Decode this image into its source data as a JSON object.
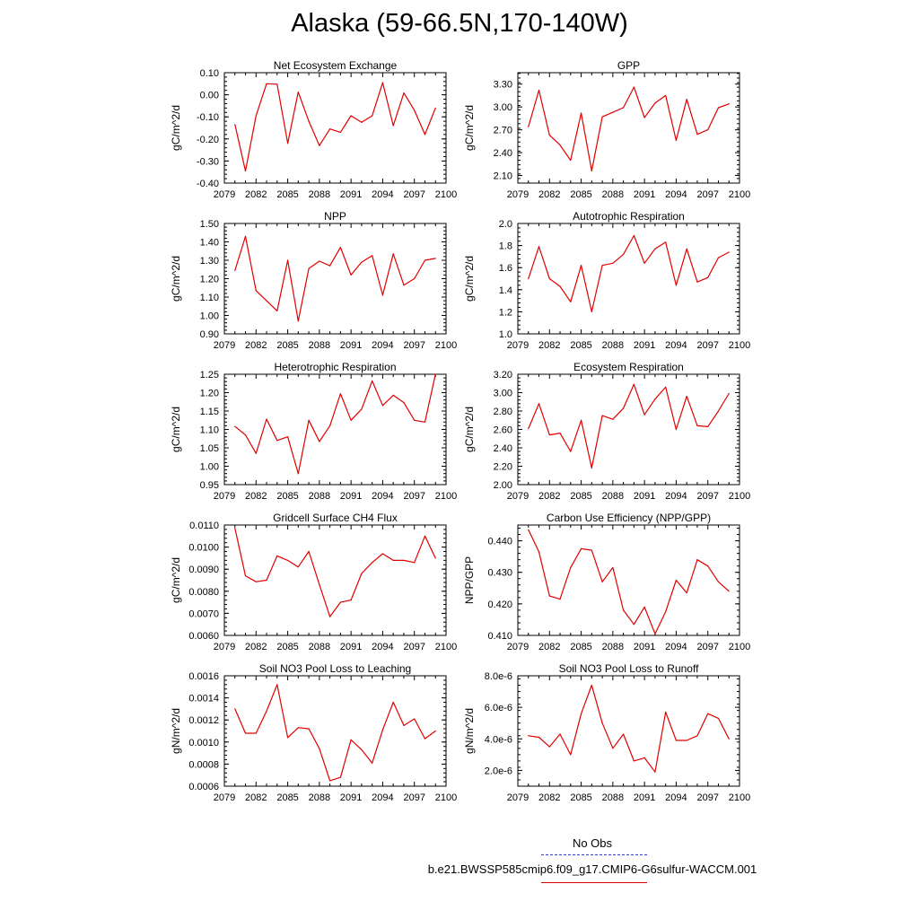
{
  "title": "Alaska (59-66.5N,170-140W)",
  "legend": {
    "obs_label": "No Obs",
    "obs_color": "#3b3bd9",
    "case_label": "b.e21.BWSSP585cmip6.f09_g17.CMIP6-G6sulfur-WACCM.001",
    "case_color": "#e00000"
  },
  "chart_data": [
    {
      "type": "line",
      "title": "Net Ecosystem Exchange",
      "ylabel": "gC/m^2/d",
      "xlim": [
        2079,
        2100
      ],
      "xticks": [
        "2079",
        "2082",
        "2085",
        "2088",
        "2091",
        "2094",
        "2097",
        "2100"
      ],
      "ylim": [
        -0.4,
        0.1
      ],
      "yticks": [
        "-0.40",
        "-0.30",
        "-0.20",
        "-0.10",
        "0.00",
        "0.10"
      ],
      "x": [
        2080,
        2081,
        2082,
        2083,
        2084,
        2085,
        2086,
        2087,
        2088,
        2089,
        2090,
        2091,
        2092,
        2093,
        2094,
        2095,
        2096,
        2097,
        2098,
        2099
      ],
      "values": [
        -0.135,
        -0.345,
        -0.095,
        0.05,
        0.048,
        -0.22,
        0.012,
        -0.12,
        -0.23,
        -0.155,
        -0.17,
        -0.095,
        -0.125,
        -0.095,
        0.055,
        -0.14,
        0.008,
        -0.07,
        -0.18,
        -0.06
      ]
    },
    {
      "type": "line",
      "title": "GPP",
      "ylabel": "gC/m^2/d",
      "xlim": [
        2079,
        2100
      ],
      "xticks": [
        "2079",
        "2082",
        "2085",
        "2088",
        "2091",
        "2094",
        "2097",
        "2100"
      ],
      "ylim": [
        2.0,
        3.45
      ],
      "yticks": [
        "2.10",
        "2.40",
        "2.70",
        "3.00",
        "3.30"
      ],
      "x": [
        2080,
        2081,
        2082,
        2083,
        2084,
        2085,
        2086,
        2087,
        2088,
        2089,
        2090,
        2091,
        2092,
        2093,
        2094,
        2095,
        2096,
        2097,
        2098,
        2099
      ],
      "values": [
        2.74,
        3.22,
        2.63,
        2.5,
        2.3,
        2.92,
        2.16,
        2.87,
        2.93,
        2.99,
        3.26,
        2.86,
        3.05,
        3.15,
        2.56,
        3.1,
        2.64,
        2.7,
        2.99,
        3.04
      ]
    },
    {
      "type": "line",
      "title": "NPP",
      "ylabel": "gC/m^2/d",
      "xlim": [
        2079,
        2100
      ],
      "xticks": [
        "2079",
        "2082",
        "2085",
        "2088",
        "2091",
        "2094",
        "2097",
        "2100"
      ],
      "ylim": [
        0.9,
        1.5
      ],
      "yticks": [
        "0.90",
        "1.00",
        "1.10",
        "1.20",
        "1.30",
        "1.40",
        "1.50"
      ],
      "x": [
        2080,
        2081,
        2082,
        2083,
        2084,
        2085,
        2086,
        2087,
        2088,
        2089,
        2090,
        2091,
        2092,
        2093,
        2094,
        2095,
        2096,
        2097,
        2098,
        2099
      ],
      "values": [
        1.245,
        1.43,
        1.135,
        1.08,
        1.025,
        1.3,
        0.97,
        1.255,
        1.295,
        1.27,
        1.37,
        1.22,
        1.29,
        1.325,
        1.11,
        1.335,
        1.165,
        1.2,
        1.3,
        1.31
      ]
    },
    {
      "type": "line",
      "title": "Autotrophic Respiration",
      "ylabel": "gC/m^2/d",
      "xlim": [
        2079,
        2100
      ],
      "xticks": [
        "2079",
        "2082",
        "2085",
        "2088",
        "2091",
        "2094",
        "2097",
        "2100"
      ],
      "ylim": [
        1.0,
        2.0
      ],
      "yticks": [
        "1.0",
        "1.2",
        "1.4",
        "1.6",
        "1.8",
        "2.0"
      ],
      "x": [
        2080,
        2081,
        2082,
        2083,
        2084,
        2085,
        2086,
        2087,
        2088,
        2089,
        2090,
        2091,
        2092,
        2093,
        2094,
        2095,
        2096,
        2097,
        2098,
        2099
      ],
      "values": [
        1.5,
        1.79,
        1.5,
        1.43,
        1.29,
        1.62,
        1.2,
        1.62,
        1.64,
        1.72,
        1.89,
        1.64,
        1.77,
        1.83,
        1.44,
        1.77,
        1.47,
        1.51,
        1.69,
        1.74
      ]
    },
    {
      "type": "line",
      "title": "Heterotrophic Respiration",
      "ylabel": "gC/m^2/d",
      "xlim": [
        2079,
        2100
      ],
      "xticks": [
        "2079",
        "2082",
        "2085",
        "2088",
        "2091",
        "2094",
        "2097",
        "2100"
      ],
      "ylim": [
        0.95,
        1.25
      ],
      "yticks": [
        "0.95",
        "1.00",
        "1.05",
        "1.10",
        "1.15",
        "1.20",
        "1.25"
      ],
      "x": [
        2080,
        2081,
        2082,
        2083,
        2084,
        2085,
        2086,
        2087,
        2088,
        2089,
        2090,
        2091,
        2092,
        2093,
        2094,
        2095,
        2096,
        2097,
        2098,
        2099
      ],
      "values": [
        1.108,
        1.085,
        1.035,
        1.128,
        1.07,
        1.08,
        0.98,
        1.125,
        1.067,
        1.11,
        1.197,
        1.125,
        1.155,
        1.232,
        1.165,
        1.193,
        1.173,
        1.125,
        1.12,
        1.25
      ]
    },
    {
      "type": "line",
      "title": "Ecosystem Respiration",
      "ylabel": "gC/m^2/d",
      "xlim": [
        2079,
        2100
      ],
      "xticks": [
        "2079",
        "2082",
        "2085",
        "2088",
        "2091",
        "2094",
        "2097",
        "2100"
      ],
      "ylim": [
        2.0,
        3.2
      ],
      "yticks": [
        "2.00",
        "2.20",
        "2.40",
        "2.60",
        "2.80",
        "3.00",
        "3.20"
      ],
      "x": [
        2080,
        2081,
        2082,
        2083,
        2084,
        2085,
        2086,
        2087,
        2088,
        2089,
        2090,
        2091,
        2092,
        2093,
        2094,
        2095,
        2096,
        2097,
        2098,
        2099
      ],
      "values": [
        2.61,
        2.88,
        2.54,
        2.56,
        2.36,
        2.7,
        2.18,
        2.75,
        2.71,
        2.83,
        3.09,
        2.76,
        2.93,
        3.06,
        2.6,
        2.96,
        2.64,
        2.63,
        2.8,
        2.99
      ]
    },
    {
      "type": "line",
      "title": "Gridcell Surface CH4 Flux",
      "ylabel": "gC/m^2/d",
      "xlim": [
        2079,
        2100
      ],
      "xticks": [
        "2079",
        "2082",
        "2085",
        "2088",
        "2091",
        "2094",
        "2097",
        "2100"
      ],
      "ylim": [
        0.006,
        0.011
      ],
      "yticks": [
        "0.0060",
        "0.0070",
        "0.0080",
        "0.0090",
        "0.0100",
        "0.0110"
      ],
      "x": [
        2080,
        2081,
        2082,
        2083,
        2084,
        2085,
        2086,
        2087,
        2088,
        2089,
        2090,
        2091,
        2092,
        2093,
        2094,
        2095,
        2096,
        2097,
        2098,
        2099
      ],
      "values": [
        0.01085,
        0.0087,
        0.00843,
        0.0085,
        0.0096,
        0.0094,
        0.0091,
        0.0098,
        0.0083,
        0.00685,
        0.0075,
        0.0076,
        0.0088,
        0.0093,
        0.0097,
        0.0094,
        0.0094,
        0.0093,
        0.0105,
        0.0095
      ]
    },
    {
      "type": "line",
      "title": "Carbon Use Efficiency (NPP/GPP)",
      "ylabel": "NPP/GPP",
      "xlim": [
        2079,
        2100
      ],
      "xticks": [
        "2079",
        "2082",
        "2085",
        "2088",
        "2091",
        "2094",
        "2097",
        "2100"
      ],
      "ylim": [
        0.41,
        0.445
      ],
      "yticks": [
        "0.410",
        "0.420",
        "0.430",
        "0.440"
      ],
      "x": [
        2080,
        2081,
        2082,
        2083,
        2084,
        2085,
        2086,
        2087,
        2088,
        2089,
        2090,
        2091,
        2092,
        2093,
        2094,
        2095,
        2096,
        2097,
        2098,
        2099
      ],
      "values": [
        0.4435,
        0.4365,
        0.4225,
        0.4215,
        0.4315,
        0.4375,
        0.437,
        0.427,
        0.4315,
        0.418,
        0.4135,
        0.419,
        0.4105,
        0.4175,
        0.4275,
        0.4235,
        0.434,
        0.432,
        0.427,
        0.424
      ]
    },
    {
      "type": "line",
      "title": "Soil NO3 Pool Loss to Leaching",
      "ylabel": "gN/m^2/d",
      "xlim": [
        2079,
        2100
      ],
      "xticks": [
        "2079",
        "2082",
        "2085",
        "2088",
        "2091",
        "2094",
        "2097",
        "2100"
      ],
      "ylim": [
        0.0006,
        0.0016
      ],
      "yticks": [
        "0.0006",
        "0.0008",
        "0.0010",
        "0.0012",
        "0.0014",
        "0.0016"
      ],
      "x": [
        2080,
        2081,
        2082,
        2083,
        2084,
        2085,
        2086,
        2087,
        2088,
        2089,
        2090,
        2091,
        2092,
        2093,
        2094,
        2095,
        2096,
        2097,
        2098,
        2099
      ],
      "values": [
        0.0013,
        0.00108,
        0.00108,
        0.00128,
        0.00152,
        0.00104,
        0.00113,
        0.00112,
        0.00094,
        0.00065,
        0.00068,
        0.00102,
        0.00093,
        0.00081,
        0.00111,
        0.00136,
        0.00115,
        0.00121,
        0.00103,
        0.0011
      ]
    },
    {
      "type": "line",
      "title": "Soil NO3 Pool Loss to Runoff",
      "ylabel": "gN/m^2/d",
      "xlim": [
        2079,
        2100
      ],
      "xticks": [
        "2079",
        "2082",
        "2085",
        "2088",
        "2091",
        "2094",
        "2097",
        "2100"
      ],
      "ylim": [
        1e-06,
        8e-06
      ],
      "yticks": [
        "2.0e-6",
        "4.0e-6",
        "6.0e-6",
        "8.0e-6"
      ],
      "x": [
        2080,
        2081,
        2082,
        2083,
        2084,
        2085,
        2086,
        2087,
        2088,
        2089,
        2090,
        2091,
        2092,
        2093,
        2094,
        2095,
        2096,
        2097,
        2098,
        2099
      ],
      "values": [
        4.2e-06,
        4.1e-06,
        3.5e-06,
        4.3e-06,
        3e-06,
        5.6e-06,
        7.4e-06,
        5e-06,
        3.4e-06,
        4.3e-06,
        2.6e-06,
        2.8e-06,
        1.9e-06,
        5.7e-06,
        3.9e-06,
        3.9e-06,
        4.2e-06,
        5.6e-06,
        5.3e-06,
        4e-06
      ]
    }
  ]
}
